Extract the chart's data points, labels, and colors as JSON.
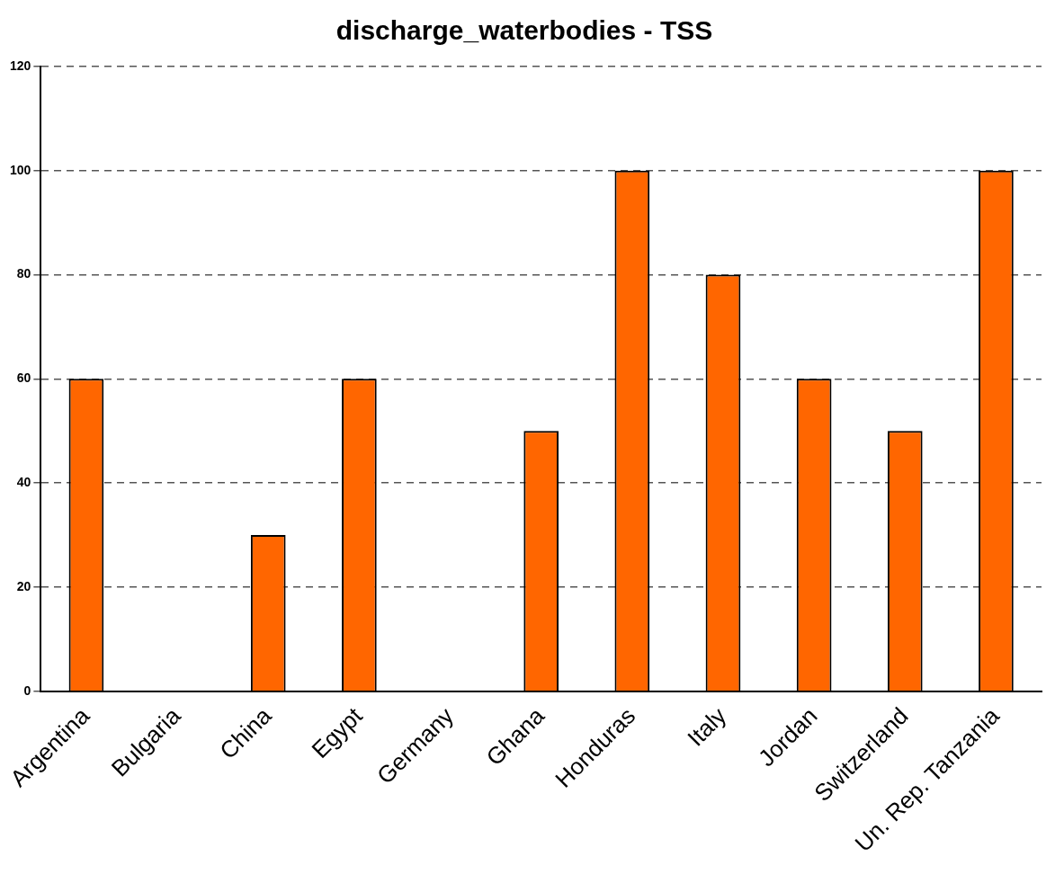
{
  "chart_data": {
    "type": "bar",
    "title": "discharge_waterbodies - TSS",
    "categories": [
      "Argentina",
      "Bulgaria",
      "China",
      "Egypt",
      "Germany",
      "Ghana",
      "Honduras",
      "Italy",
      "Jordan",
      "Switzerland",
      "Un. Rep. Tanzania"
    ],
    "values": [
      60,
      null,
      30,
      60,
      null,
      50,
      100,
      80,
      60,
      50,
      100
    ],
    "color": "#ff6600",
    "ylim": [
      0,
      120
    ],
    "yticks": [
      0,
      20,
      40,
      60,
      80,
      100,
      120
    ],
    "grid": "y",
    "legend": false
  }
}
